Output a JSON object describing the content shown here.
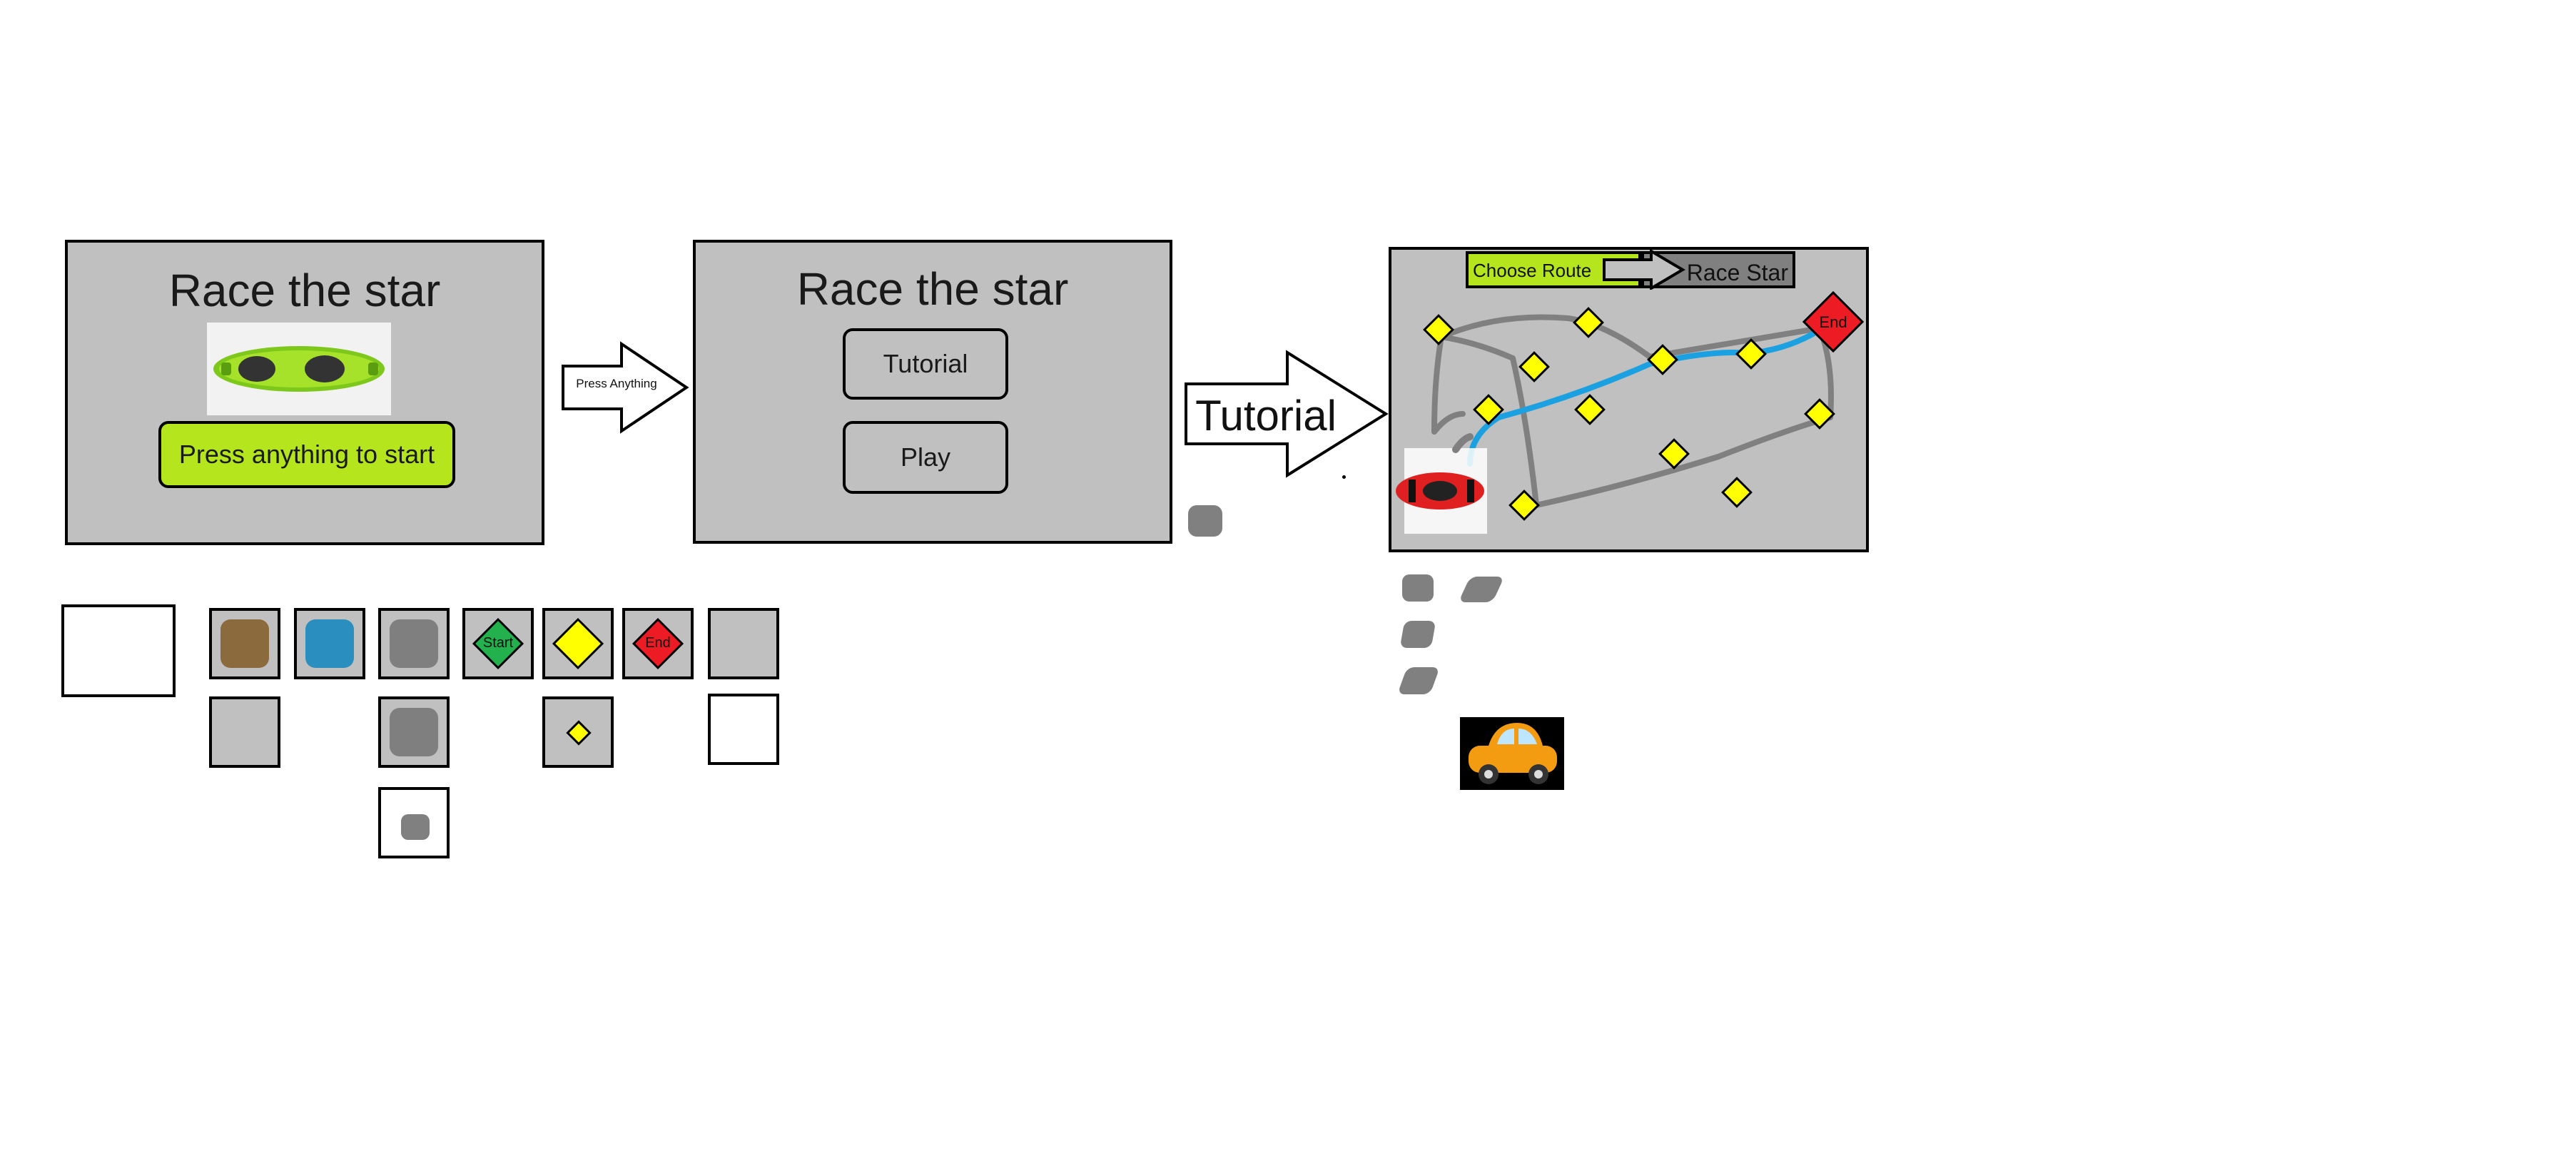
{
  "screen1": {
    "title": "Race the star",
    "start_button": "Press anything to start"
  },
  "arrow1": {
    "label": "Press Anything"
  },
  "screen2": {
    "title": "Race the star",
    "tutorial_button": "Tutorial",
    "play_button": "Play"
  },
  "arrow2": {
    "label": "Tutorial"
  },
  "screen3": {
    "choose_route": "Choose Route",
    "race_star": "Race Star",
    "end_label": "End"
  },
  "tiles": {
    "start_label": "Start",
    "end_label": "End"
  },
  "colors": {
    "panel": "#c0c0c0",
    "accent_green": "#b5e61d",
    "route_blue": "#1ba1e2",
    "checkpoint_yellow": "#ffff00",
    "end_red": "#ed1c24",
    "start_green": "#22b14c",
    "dirt": "#8b6a3e",
    "water": "#2a8fbf",
    "road": "#7f7f7f"
  },
  "icons": [
    "green-sports-car-icon",
    "red-race-car-icon",
    "orange-cartoon-car-icon",
    "right-arrow-icon"
  ]
}
